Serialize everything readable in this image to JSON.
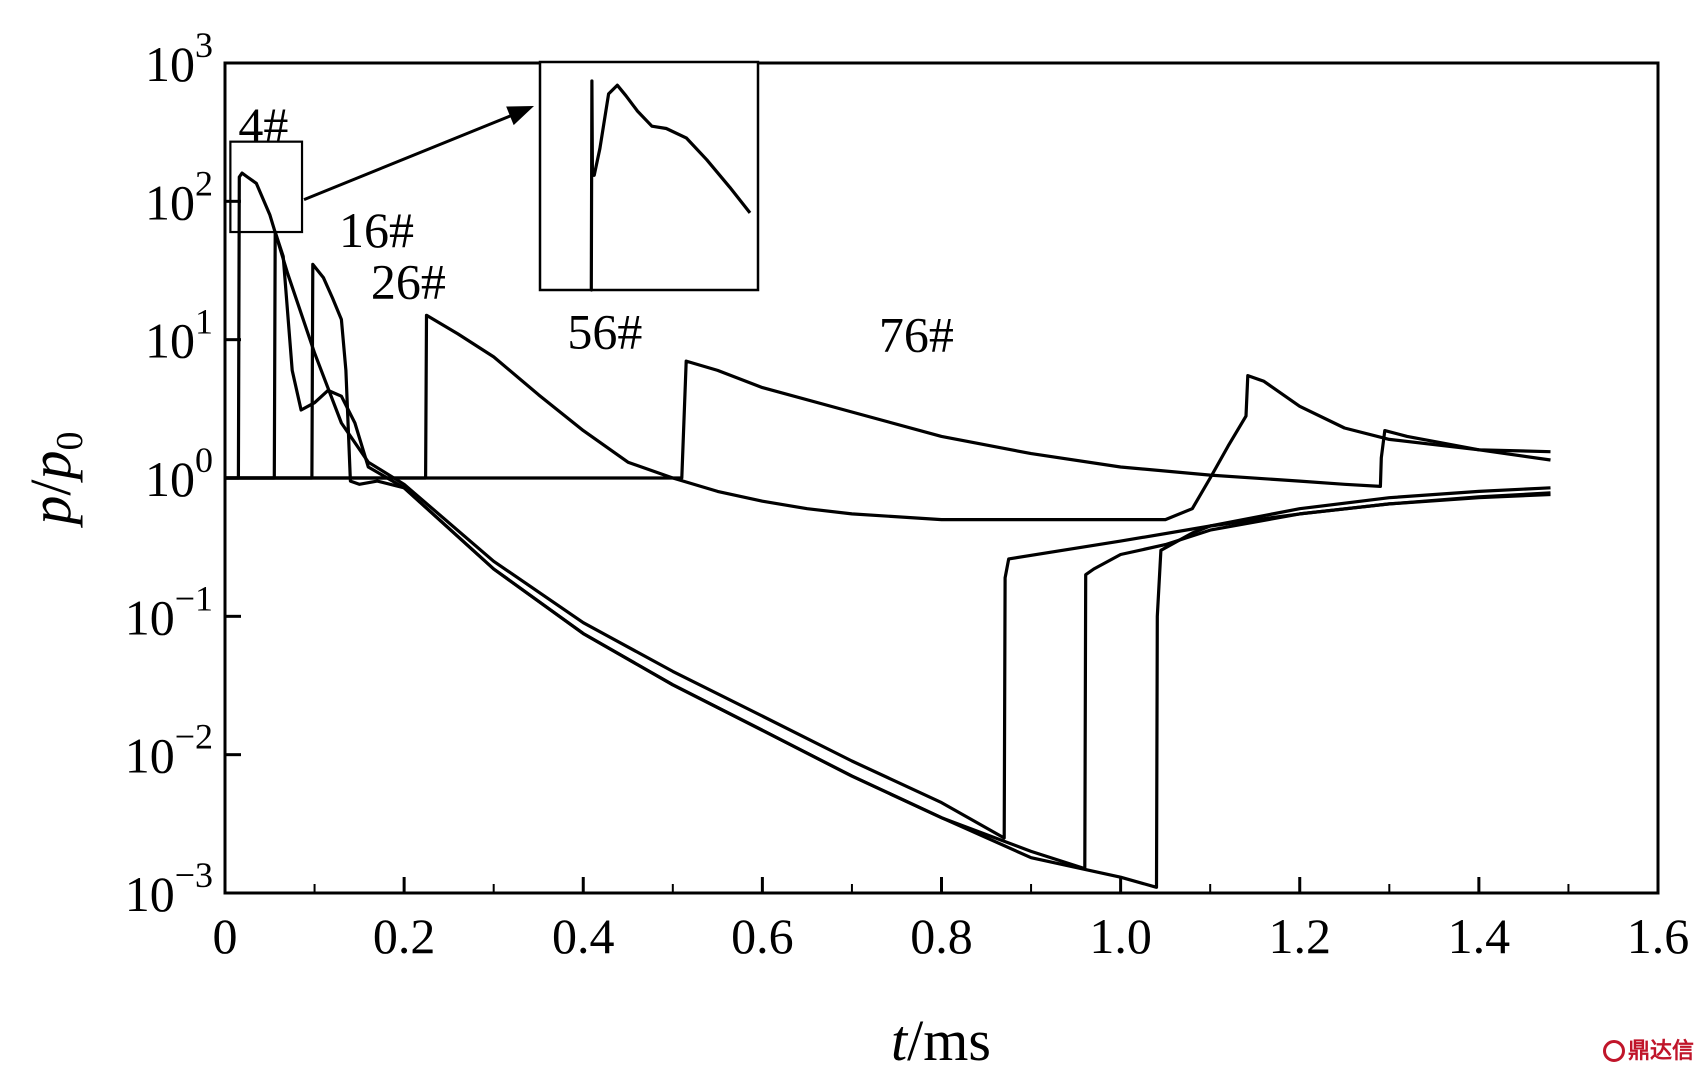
{
  "chart_data": {
    "type": "line",
    "title": "",
    "xlabel_italic": "t",
    "xlabel_unit": "/ms",
    "ylabel_p": "p",
    "ylabel_slash": "/",
    "ylabel_p0": "p",
    "ylabel_p0_sub": "0",
    "xlim": [
      0,
      1.6
    ],
    "ylim": [
      0.001,
      1000
    ],
    "yscale": "log",
    "grid": false,
    "legend": "none",
    "x_ticks": [
      {
        "value": 0,
        "label": "0"
      },
      {
        "value": 0.2,
        "label": "0.2"
      },
      {
        "value": 0.4,
        "label": "0.4"
      },
      {
        "value": 0.6,
        "label": "0.6"
      },
      {
        "value": 0.8,
        "label": "0.8"
      },
      {
        "value": 1.0,
        "label": "1.0"
      },
      {
        "value": 1.2,
        "label": "1.2"
      },
      {
        "value": 1.4,
        "label": "1.4"
      },
      {
        "value": 1.6,
        "label": "1.6"
      }
    ],
    "y_ticks": [
      {
        "value": 1000,
        "base": "10",
        "exp": "3"
      },
      {
        "value": 100,
        "base": "10",
        "exp": "2"
      },
      {
        "value": 10,
        "base": "10",
        "exp": "1"
      },
      {
        "value": 1,
        "base": "10",
        "exp": "0"
      },
      {
        "value": 0.1,
        "base": "10",
        "exp": "−1"
      },
      {
        "value": 0.01,
        "base": "10",
        "exp": "−2"
      },
      {
        "value": 0.001,
        "base": "10",
        "exp": "−3"
      }
    ],
    "series": [
      {
        "name": "4#",
        "label_at": [
          0.015,
          150
        ],
        "points": [
          [
            0.0,
            1
          ],
          [
            0.015,
            1
          ],
          [
            0.016,
            150
          ],
          [
            0.019,
            160
          ],
          [
            0.025,
            150
          ],
          [
            0.035,
            135
          ],
          [
            0.05,
            80
          ],
          [
            0.07,
            30
          ],
          [
            0.1,
            8
          ],
          [
            0.13,
            2.5
          ],
          [
            0.16,
            1.3
          ],
          [
            0.2,
            0.9
          ],
          [
            0.3,
            0.25
          ],
          [
            0.4,
            0.09
          ],
          [
            0.5,
            0.04
          ],
          [
            0.6,
            0.019
          ],
          [
            0.7,
            0.009
          ],
          [
            0.8,
            0.0045
          ],
          [
            0.87,
            0.0025
          ],
          [
            0.871,
            0.19
          ],
          [
            0.875,
            0.26
          ],
          [
            1.0,
            0.35
          ],
          [
            1.1,
            0.45
          ],
          [
            1.2,
            0.55
          ],
          [
            1.3,
            0.65
          ],
          [
            1.4,
            0.72
          ],
          [
            1.48,
            0.76
          ]
        ]
      },
      {
        "name": "16#",
        "label_at": [
          0.105,
          65
        ],
        "points": [
          [
            0.0,
            1
          ],
          [
            0.055,
            1
          ],
          [
            0.056,
            60
          ],
          [
            0.065,
            40
          ],
          [
            0.075,
            6
          ],
          [
            0.085,
            3.1
          ],
          [
            0.1,
            3.5
          ],
          [
            0.115,
            4.3
          ],
          [
            0.13,
            3.9
          ],
          [
            0.145,
            2.5
          ],
          [
            0.16,
            1.2
          ],
          [
            0.2,
            0.85
          ],
          [
            0.3,
            0.22
          ],
          [
            0.4,
            0.075
          ],
          [
            0.5,
            0.032
          ],
          [
            0.6,
            0.015
          ],
          [
            0.7,
            0.007
          ],
          [
            0.8,
            0.0035
          ],
          [
            0.9,
            0.002
          ],
          [
            0.96,
            0.0015
          ],
          [
            0.961,
            0.2
          ],
          [
            0.97,
            0.22
          ],
          [
            1.0,
            0.28
          ],
          [
            1.05,
            0.33
          ],
          [
            1.1,
            0.42
          ],
          [
            1.2,
            0.55
          ],
          [
            1.3,
            0.65
          ],
          [
            1.4,
            0.73
          ],
          [
            1.48,
            0.78
          ]
        ]
      },
      {
        "name": "26#",
        "label_at": [
          0.135,
          30
        ],
        "points": [
          [
            0.0,
            1
          ],
          [
            0.097,
            1
          ],
          [
            0.098,
            35
          ],
          [
            0.11,
            28
          ],
          [
            0.12,
            20
          ],
          [
            0.13,
            14
          ],
          [
            0.135,
            6
          ],
          [
            0.14,
            0.95
          ],
          [
            0.15,
            0.9
          ],
          [
            0.17,
            0.95
          ],
          [
            0.2,
            0.85
          ],
          [
            0.3,
            0.22
          ],
          [
            0.4,
            0.075
          ],
          [
            0.5,
            0.032
          ],
          [
            0.6,
            0.015
          ],
          [
            0.7,
            0.007
          ],
          [
            0.8,
            0.0035
          ],
          [
            0.9,
            0.0018
          ],
          [
            1.0,
            0.0013
          ],
          [
            1.04,
            0.0011
          ],
          [
            1.041,
            0.1
          ],
          [
            1.045,
            0.3
          ],
          [
            1.08,
            0.4
          ],
          [
            1.1,
            0.45
          ],
          [
            1.2,
            0.6
          ],
          [
            1.3,
            0.72
          ],
          [
            1.4,
            0.8
          ],
          [
            1.48,
            0.85
          ]
        ]
      },
      {
        "name": "56#",
        "label_at": [
          0.36,
          12
        ],
        "points": [
          [
            0.0,
            1
          ],
          [
            0.224,
            1
          ],
          [
            0.225,
            15
          ],
          [
            0.26,
            11
          ],
          [
            0.3,
            7.5
          ],
          [
            0.35,
            4
          ],
          [
            0.4,
            2.2
          ],
          [
            0.45,
            1.3
          ],
          [
            0.5,
            1.0
          ],
          [
            0.55,
            0.8
          ],
          [
            0.6,
            0.68
          ],
          [
            0.65,
            0.6
          ],
          [
            0.7,
            0.55
          ],
          [
            0.8,
            0.5
          ],
          [
            0.9,
            0.5
          ],
          [
            1.0,
            0.5
          ],
          [
            1.05,
            0.5
          ],
          [
            1.08,
            0.6
          ],
          [
            1.1,
            1.0
          ],
          [
            1.12,
            1.7
          ],
          [
            1.14,
            2.8
          ],
          [
            1.142,
            5.5
          ],
          [
            1.16,
            5.0
          ],
          [
            1.2,
            3.3
          ],
          [
            1.25,
            2.3
          ],
          [
            1.3,
            1.9
          ],
          [
            1.4,
            1.6
          ],
          [
            1.48,
            1.55
          ]
        ]
      },
      {
        "name": "76#",
        "label_at": [
          0.71,
          11.5
        ],
        "points": [
          [
            0.0,
            1
          ],
          [
            0.51,
            1
          ],
          [
            0.515,
            7
          ],
          [
            0.55,
            6
          ],
          [
            0.6,
            4.5
          ],
          [
            0.7,
            3.0
          ],
          [
            0.8,
            2.0
          ],
          [
            0.9,
            1.5
          ],
          [
            1.0,
            1.2
          ],
          [
            1.1,
            1.05
          ],
          [
            1.2,
            0.95
          ],
          [
            1.25,
            0.9
          ],
          [
            1.29,
            0.87
          ],
          [
            1.291,
            1.4
          ],
          [
            1.295,
            2.2
          ],
          [
            1.32,
            2.0
          ],
          [
            1.4,
            1.6
          ],
          [
            1.48,
            1.35
          ]
        ]
      }
    ],
    "inset_series": [
      [
        0.0,
        1
      ],
      [
        0.015,
        1
      ],
      [
        0.0152,
        165
      ],
      [
        0.0154,
        85
      ],
      [
        0.016,
        82
      ],
      [
        0.018,
        100
      ],
      [
        0.021,
        150
      ],
      [
        0.024,
        160
      ],
      [
        0.027,
        148
      ],
      [
        0.031,
        132
      ],
      [
        0.036,
        118
      ],
      [
        0.041,
        116
      ],
      [
        0.048,
        108
      ],
      [
        0.055,
        92
      ],
      [
        0.063,
        75
      ],
      [
        0.07,
        62
      ]
    ]
  },
  "watermark_text": "鼎达信"
}
